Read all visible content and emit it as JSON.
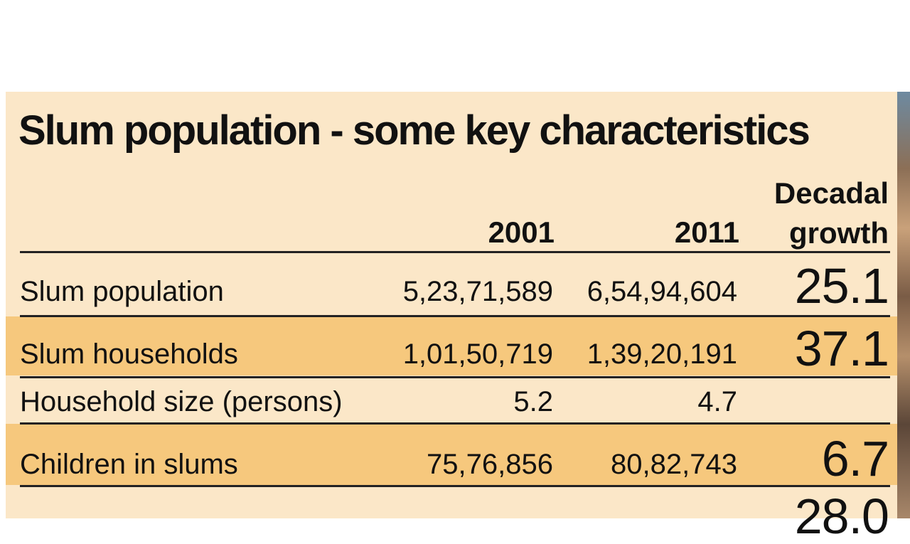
{
  "title": "Slum population - some key characteristics",
  "columns": {
    "y2001": "2001",
    "y2011": "2011",
    "growth_line1": "Decadal",
    "growth_line2": "growth"
  },
  "rows": [
    {
      "label": "Slum population",
      "y2001": "5,23,71,589",
      "y2011": "6,54,94,604",
      "growth": "25.1"
    },
    {
      "label": "Slum households",
      "y2001": "1,01,50,719",
      "y2011": "1,39,20,191",
      "growth": "37.1"
    },
    {
      "label": "Household size (persons)",
      "y2001": "5.2",
      "y2011": "4.7",
      "growth": ""
    },
    {
      "label": "Children in slums",
      "y2001": "75,76,856",
      "y2011": "80,82,743",
      "growth": "6.7"
    },
    {
      "label": "",
      "y2001": "",
      "y2011": "",
      "growth": "28.0"
    }
  ],
  "colors": {
    "panel": "#fbe7c8",
    "band": "#f6c87d",
    "text": "#111111"
  }
}
